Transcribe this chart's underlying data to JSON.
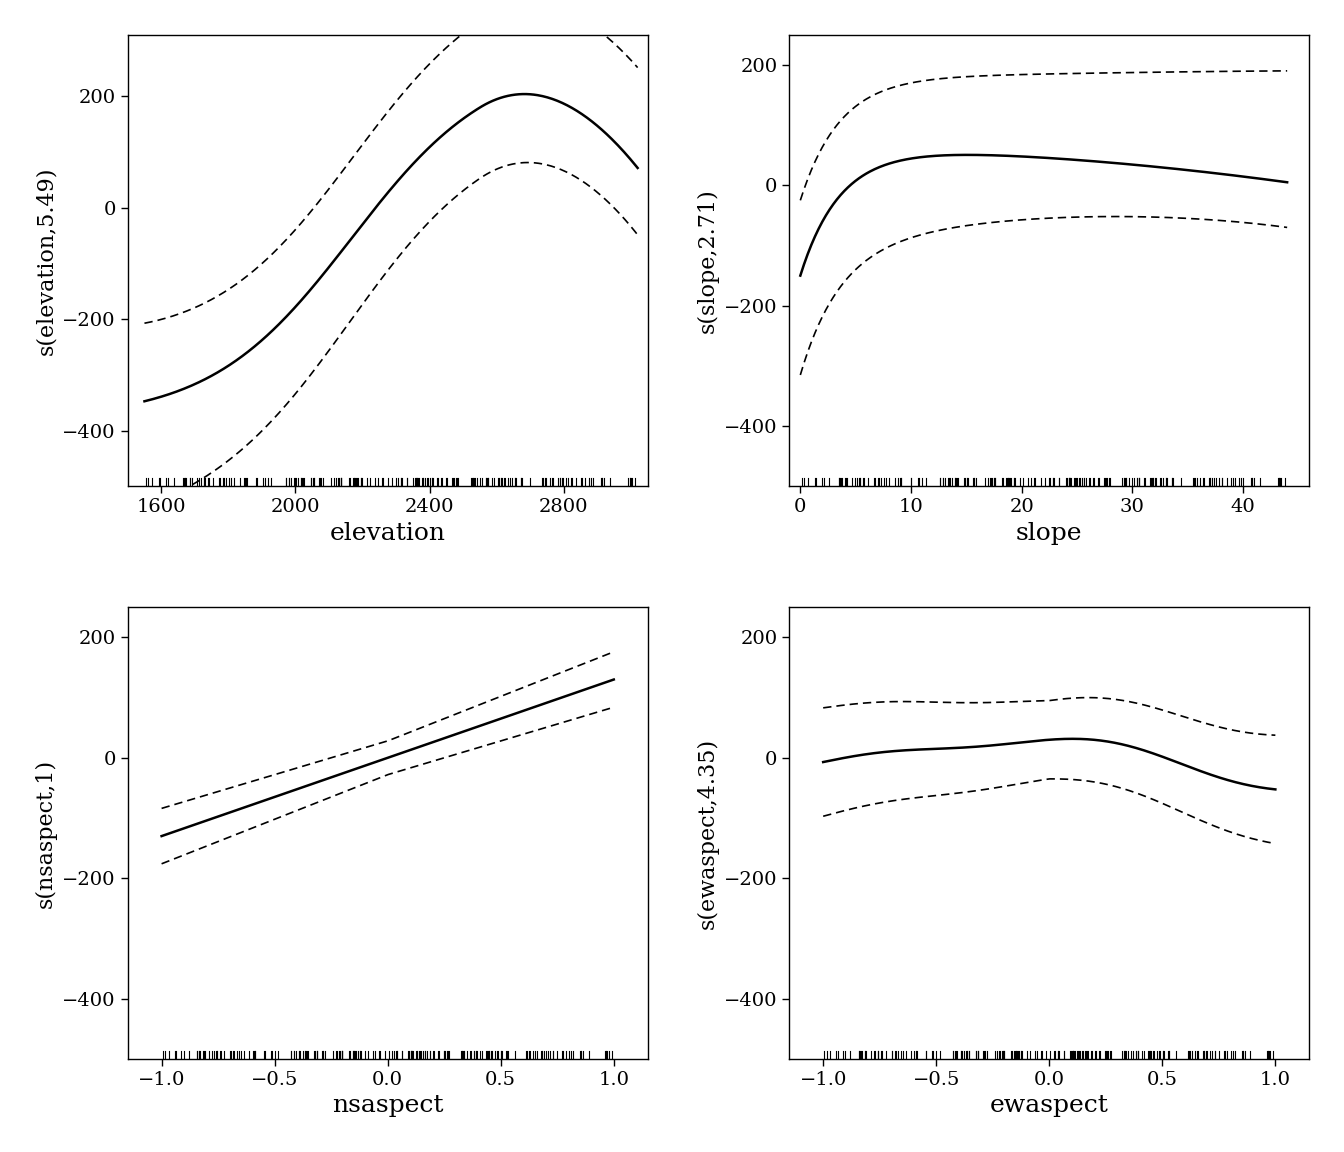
{
  "plots": [
    {
      "xlabel": "elevation",
      "ylabel": "s(elevation,5.49)",
      "xlim": [
        1500,
        3050
      ],
      "ylim": [
        -500,
        310
      ],
      "xticks": [
        1600,
        2000,
        2400,
        2800
      ],
      "yticks": [
        -400,
        -200,
        0,
        200
      ],
      "x_range": [
        1550,
        3020
      ],
      "fit_type": "elevation",
      "rug_xmin": 1550,
      "rug_xmax": 3020
    },
    {
      "xlabel": "slope",
      "ylabel": "s(slope,2.71)",
      "xlim": [
        -1,
        46
      ],
      "ylim": [
        -500,
        250
      ],
      "xticks": [
        0,
        10,
        20,
        30,
        40
      ],
      "yticks": [
        -400,
        -200,
        0,
        200
      ],
      "x_range": [
        0,
        44
      ],
      "fit_type": "slope",
      "rug_xmin": 0,
      "rug_xmax": 44
    },
    {
      "xlabel": "nsaspect",
      "ylabel": "s(nsaspect,1)",
      "xlim": [
        -1.15,
        1.15
      ],
      "ylim": [
        -500,
        250
      ],
      "xticks": [
        -1.0,
        -0.5,
        0.0,
        0.5,
        1.0
      ],
      "yticks": [
        -400,
        -200,
        0,
        200
      ],
      "x_range": [
        -1.0,
        1.0
      ],
      "fit_type": "nsaspect",
      "rug_xmin": -1.0,
      "rug_xmax": 1.0
    },
    {
      "xlabel": "ewaspect",
      "ylabel": "s(ewaspect,4.35)",
      "xlim": [
        -1.15,
        1.15
      ],
      "ylim": [
        -500,
        250
      ],
      "xticks": [
        -1.0,
        -0.5,
        0.0,
        0.5,
        1.0
      ],
      "yticks": [
        -400,
        -200,
        0,
        200
      ],
      "x_range": [
        -1.0,
        1.0
      ],
      "fit_type": "ewaspect",
      "rug_xmin": -1.0,
      "rug_xmax": 1.0
    }
  ],
  "line_color": "#000000",
  "dashed_color": "#000000",
  "bg_color": "#ffffff",
  "font_size": 16,
  "label_font_size": 18
}
